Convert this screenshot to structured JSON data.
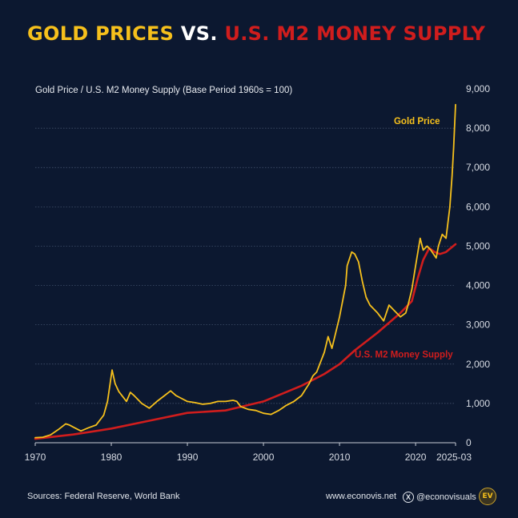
{
  "header": {
    "title_part1": "GOLD PRICES",
    "title_part2": "VS.",
    "title_part3": "U.S. M2 MONEY SUPPLY"
  },
  "chart_data": {
    "type": "line",
    "title": "GOLD PRICES VS. U.S. M2 MONEY SUPPLY",
    "subtitle": "Gold Price / U.S. M2 Money Supply (Base Period 1960s = 100)",
    "xlabel": "",
    "ylabel": "",
    "xlim": [
      1970,
      2025.25
    ],
    "ylim": [
      0,
      9000
    ],
    "x_ticks": [
      1970,
      1980,
      1990,
      2000,
      2010,
      2020
    ],
    "x_tick_labels": [
      "1970",
      "1980",
      "1990",
      "2000",
      "2010",
      "2020"
    ],
    "x_end_label": "2025-03",
    "y_ticks": [
      0,
      1000,
      2000,
      3000,
      4000,
      5000,
      6000,
      7000,
      8000,
      9000
    ],
    "y_tick_labels": [
      "0",
      "1,000",
      "2,000",
      "3,000",
      "4,000",
      "5,000",
      "6,000",
      "7,000",
      "8,000",
      "9,000"
    ],
    "grid": true,
    "colors": {
      "gold": "#f6c01c",
      "m2": "#d01d1d",
      "grid": "#4a5a75",
      "background": "#0c1830"
    },
    "series": [
      {
        "name": "Gold Price",
        "x": [
          1970,
          1971,
          1972,
          1973,
          1974,
          1974.5,
          1975,
          1976,
          1977,
          1978,
          1979,
          1979.5,
          1980.1,
          1980.5,
          1981,
          1982,
          1982.5,
          1983,
          1984,
          1985,
          1986,
          1987,
          1987.8,
          1988.5,
          1989,
          1990,
          1991,
          1992,
          1993,
          1994,
          1995,
          1996,
          1996.5,
          1997,
          1998,
          1999,
          2000,
          2001,
          2002,
          2003,
          2004,
          2005,
          2006,
          2006.5,
          2007,
          2008,
          2008.5,
          2009,
          2010,
          2010.8,
          2011,
          2011.6,
          2012,
          2012.5,
          2013,
          2013.5,
          2014,
          2015,
          2015.8,
          2016.5,
          2017,
          2018,
          2018.7,
          2019,
          2019.5,
          2020,
          2020.6,
          2021,
          2021.5,
          2022,
          2022.7,
          2023,
          2023.5,
          2024,
          2024.5,
          2024.8,
          2025,
          2025.25
        ],
        "values": [
          130,
          140,
          200,
          330,
          480,
          450,
          400,
          300,
          380,
          450,
          700,
          1050,
          1850,
          1500,
          1300,
          1050,
          1280,
          1200,
          1000,
          880,
          1050,
          1200,
          1320,
          1200,
          1150,
          1050,
          1020,
          980,
          1000,
          1050,
          1050,
          1080,
          1050,
          920,
          850,
          820,
          750,
          720,
          820,
          950,
          1050,
          1200,
          1500,
          1700,
          1800,
          2300,
          2700,
          2400,
          3200,
          4000,
          4500,
          4850,
          4800,
          4600,
          4100,
          3700,
          3500,
          3300,
          3100,
          3500,
          3400,
          3200,
          3300,
          3500,
          3900,
          4500,
          5200,
          4900,
          5000,
          4900,
          4700,
          5000,
          5300,
          5200,
          6000,
          6800,
          7500,
          8600
        ]
      },
      {
        "name": "U.S. M2 Money Supply",
        "x": [
          1970,
          1975,
          1980,
          1985,
          1990,
          1995,
          2000,
          2005,
          2008,
          2010,
          2012,
          2015,
          2018,
          2019.5,
          2020.3,
          2021,
          2021.8,
          2022.5,
          2023.2,
          2024,
          2025.25
        ],
        "values": [
          100,
          210,
          360,
          560,
          760,
          820,
          1050,
          1450,
          1750,
          2000,
          2350,
          2800,
          3300,
          3600,
          4200,
          4650,
          4950,
          4850,
          4800,
          4850,
          5050
        ]
      }
    ],
    "annotations": [
      {
        "text": "Gold Price",
        "series": "Gold Price"
      },
      {
        "text": "U.S. M2 Money Supply",
        "series": "U.S. M2 Money Supply"
      }
    ]
  },
  "footer": {
    "sources": "Sources: Federal Reserve, World Bank",
    "website": "www.econovis.net",
    "x_glyph": "X",
    "handle": "@econovisuals",
    "logo_text": "EV"
  }
}
